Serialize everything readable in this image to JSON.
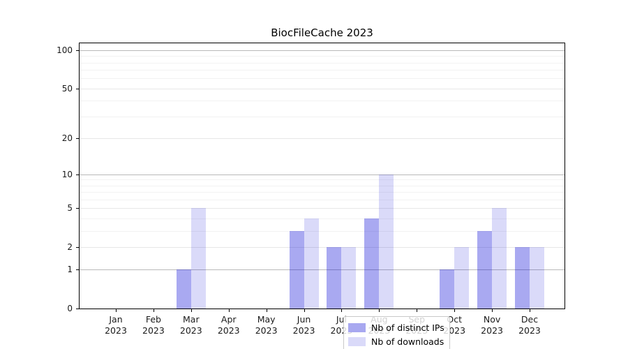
{
  "chart_data": {
    "type": "bar",
    "title": "BiocFileCache 2023",
    "categories": [
      "Jan 2023",
      "Feb 2023",
      "Mar 2023",
      "Apr 2023",
      "May 2023",
      "Jun 2023",
      "Jul 2023",
      "Aug 2023",
      "Sep 2023",
      "Oct 2023",
      "Nov 2023",
      "Dec 2023"
    ],
    "series": [
      {
        "name": "Nb of distinct IPs",
        "values": [
          0,
          0,
          1,
          0,
          0,
          3,
          2,
          4,
          0,
          1,
          3,
          2
        ],
        "color": "#0808d7",
        "alpha": 0.35,
        "swatch": "#a8a8f0"
      },
      {
        "name": "Nb of downloads",
        "values": [
          0,
          0,
          5,
          0,
          0,
          4,
          2,
          10,
          0,
          2,
          5,
          2
        ],
        "color": "#0808d7",
        "alpha": 0.15,
        "swatch": "#dadaf9"
      }
    ],
    "y_scale": "log10(1+x)",
    "y_ticks": [
      0,
      1,
      2,
      5,
      10,
      20,
      50,
      100
    ],
    "y_minor_gridlines": [
      3,
      4,
      6,
      7,
      8,
      9,
      30,
      40,
      60,
      70,
      80,
      90
    ],
    "ylim": [
      0,
      113
    ],
    "grid": "horizontal",
    "legend_position": "inside-bottom-center",
    "colors": {
      "minor_grid": "#f2f2f2",
      "major_grid": "#e7e7e7",
      "decade_grid": "#b9b9b9",
      "decade_grid_values": [
        1,
        10,
        100
      ],
      "axis": "#000000",
      "background": "#ffffff"
    }
  }
}
